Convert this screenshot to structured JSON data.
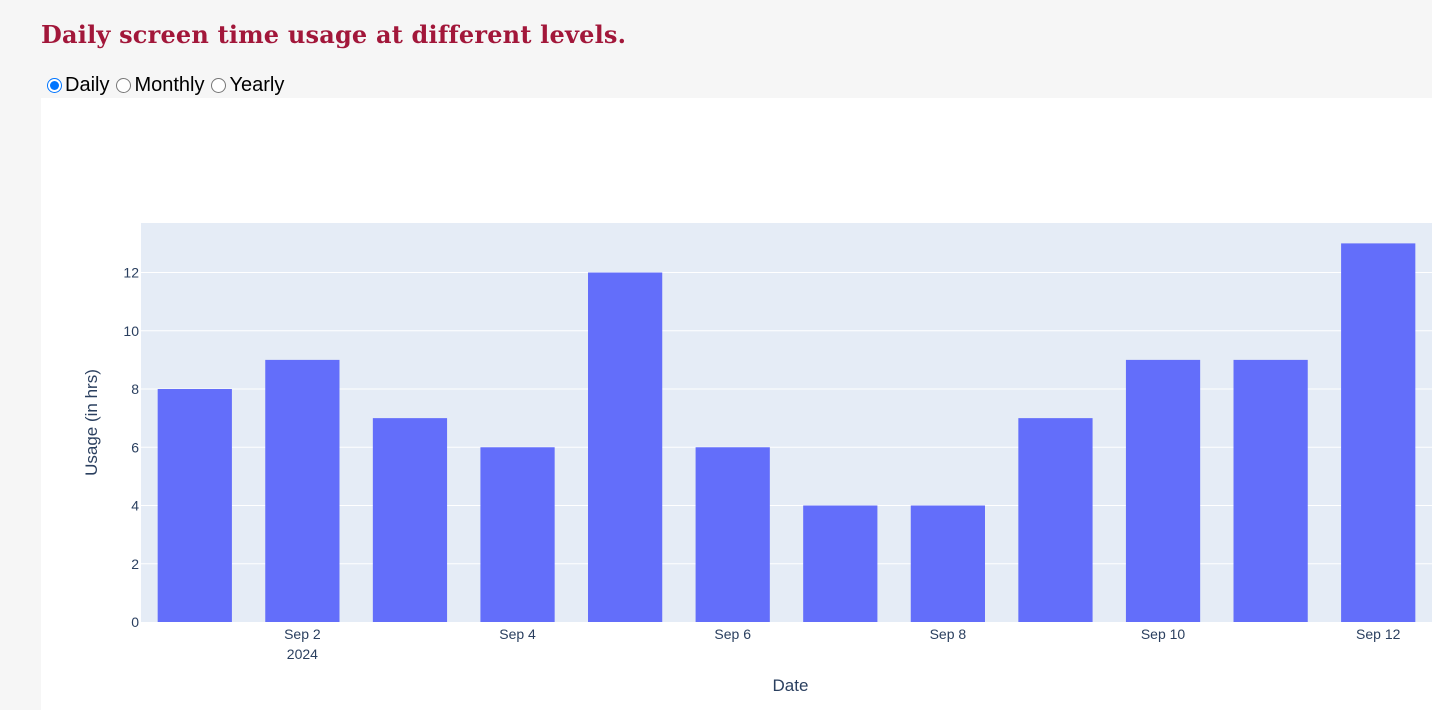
{
  "page": {
    "title": "Daily screen time usage at different levels."
  },
  "level_selector": {
    "options": [
      {
        "label": "Daily",
        "checked": true
      },
      {
        "label": "Monthly",
        "checked": false
      },
      {
        "label": "Yearly",
        "checked": false
      }
    ]
  },
  "colors": {
    "title": "#a2173a",
    "bar": "#636efa",
    "plot_bg": "#e5ecf6",
    "axis_text": "#2a3f5f"
  },
  "chart_data": {
    "type": "bar",
    "categories": [
      "2024-09-01",
      "2024-09-02",
      "2024-09-03",
      "2024-09-04",
      "2024-09-05",
      "2024-09-06",
      "2024-09-07",
      "2024-09-08",
      "2024-09-09",
      "2024-09-10",
      "2024-09-11",
      "2024-09-12"
    ],
    "values": [
      8,
      9,
      7,
      6,
      12,
      6,
      4,
      4,
      7,
      9,
      9,
      13
    ],
    "xlabel": "Date",
    "ylabel": "Usage (in hrs)",
    "ylim": [
      0,
      13.7
    ],
    "yticks": [
      0,
      2,
      4,
      6,
      8,
      10,
      12
    ],
    "xtick_labels": [
      {
        "date": "2024-09-02",
        "label": "Sep 2",
        "sublabel": "2024"
      },
      {
        "date": "2024-09-04",
        "label": "Sep 4",
        "sublabel": ""
      },
      {
        "date": "2024-09-06",
        "label": "Sep 6",
        "sublabel": ""
      },
      {
        "date": "2024-09-08",
        "label": "Sep 8",
        "sublabel": ""
      },
      {
        "date": "2024-09-10",
        "label": "Sep 10",
        "sublabel": ""
      },
      {
        "date": "2024-09-12",
        "label": "Sep 12",
        "sublabel": ""
      }
    ],
    "grid": true
  }
}
